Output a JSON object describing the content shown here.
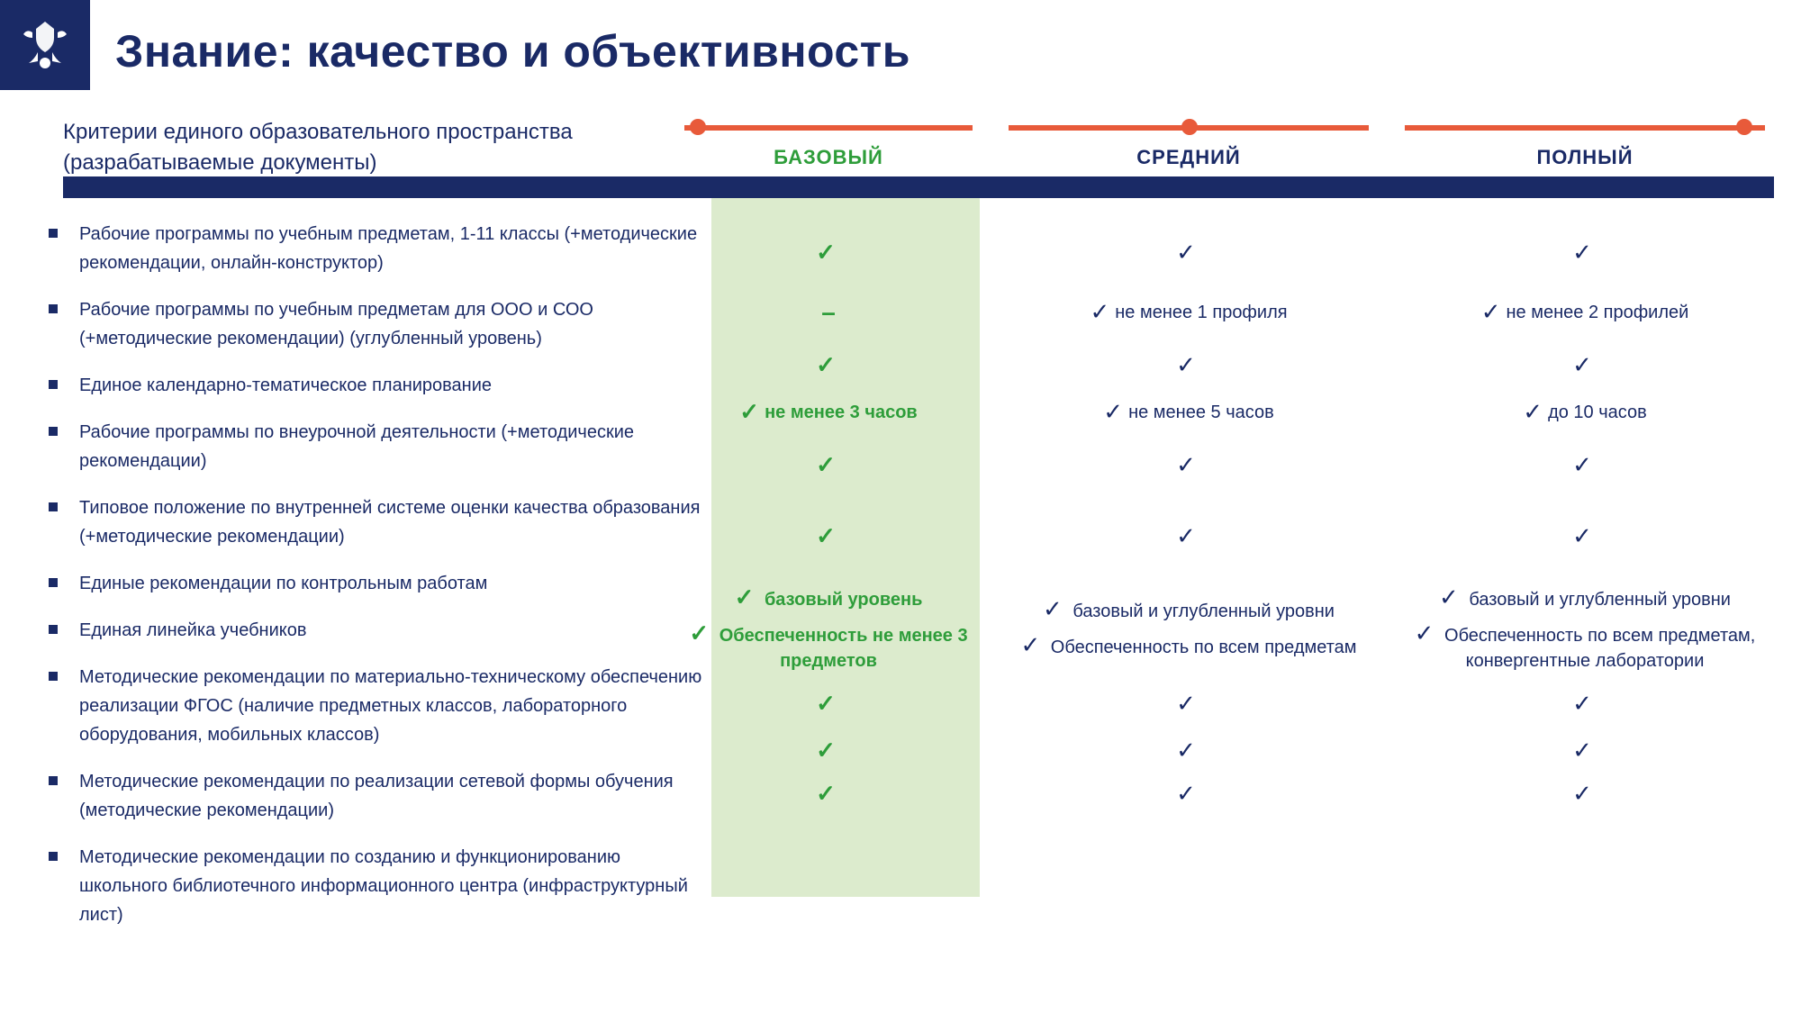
{
  "title": "Знание: качество и объективность",
  "subtitle": "Критерии единого образовательного пространства (разрабатываемые документы)",
  "levels": {
    "basic": "БАЗОВЫЙ",
    "medium": "СРЕДНИЙ",
    "full": "ПОЛНЫЙ"
  },
  "slider_positions": {
    "basic": "2%",
    "medium": "48%",
    "full": "92%"
  },
  "colors": {
    "brand_navy": "#1a2a66",
    "accent_green": "#2e9d3a",
    "accent_orange": "#e85a3a",
    "highlight_bg": "#d6e7c4",
    "page_bg": "#ffffff"
  },
  "criteria": [
    "Рабочие программы по учебным предметам, 1-11 классы (+методические рекомендации, онлайн-конструктор)",
    "Рабочие программы по учебным предметам для ООО и СОО (+методические рекомендации) (углубленный уровень)",
    "Единое календарно-тематическое планирование",
    "Рабочие программы по внеурочной деятельности (+методические рекомендации)",
    "Типовое положение  по внутренней системе оценки качества образования (+методические рекомендации)",
    "Единые рекомендации по контрольным работам",
    "Единая линейка учебников",
    "Методические рекомендации по материально-техническому обеспечению реализации ФГОС (наличие предметных классов, лабораторного оборудования, мобильных классов)",
    "Методические рекомендации по реализации сетевой формы обучения (методические рекомендации)",
    "Методические рекомендации по созданию и функционированию  школьного библиотечного информационного центра  (инфраструктурный лист)"
  ],
  "rows": [
    {
      "basic": {
        "t": "check"
      },
      "medium": {
        "t": "check"
      },
      "full": {
        "t": "check"
      }
    },
    {
      "basic": {
        "t": "dash"
      },
      "medium": {
        "t": "text",
        "v": "не менее 1 профиля"
      },
      "full": {
        "t": "text",
        "v": "не менее 2 профилей"
      }
    },
    {
      "basic": {
        "t": "check"
      },
      "medium": {
        "t": "check"
      },
      "full": {
        "t": "check"
      }
    },
    {
      "basic": {
        "t": "text",
        "v": "не менее 3 часов"
      },
      "medium": {
        "t": "text",
        "v": "не менее 5 часов"
      },
      "full": {
        "t": "text",
        "v": "до 10 часов"
      }
    },
    {
      "basic": {
        "t": "check"
      },
      "medium": {
        "t": "check"
      },
      "full": {
        "t": "check"
      }
    },
    null,
    {
      "basic": {
        "t": "check"
      },
      "medium": {
        "t": "check"
      },
      "full": {
        "t": "check"
      }
    },
    {
      "basic": {
        "t": "multi",
        "v": [
          "базовый уровень",
          "Обеспеченность не менее 3 предметов"
        ]
      },
      "medium": {
        "t": "multi",
        "v": [
          "базовый и углубленный уровни",
          "Обеспеченность по всем предметам"
        ]
      },
      "full": {
        "t": "multi",
        "v": [
          "базовый и углубленный уровни",
          "Обеспеченность по всем предметам, конвергентные лаборатории"
        ]
      }
    },
    {
      "basic": {
        "t": "check"
      },
      "medium": {
        "t": "check"
      },
      "full": {
        "t": "check"
      }
    },
    {
      "basic": {
        "t": "2check"
      },
      "medium": {
        "t": "2check"
      },
      "full": {
        "t": "2check"
      }
    }
  ]
}
